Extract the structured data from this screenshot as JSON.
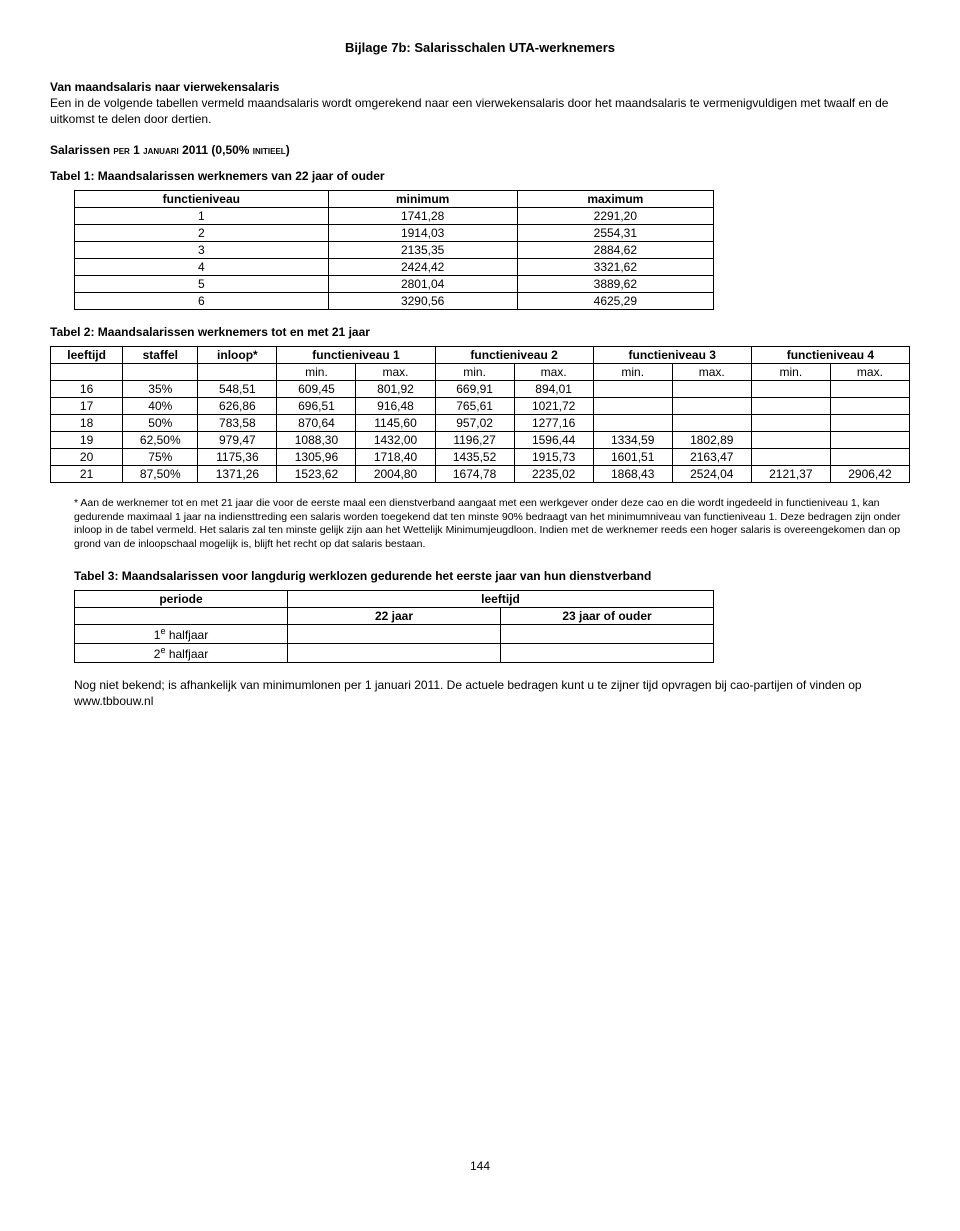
{
  "title": "Bijlage 7b:  Salarisschalen UTA-werknemers",
  "intro": {
    "heading": "Van maandsalaris naar vierwekensalaris",
    "body": "Een in de volgende tabellen vermeld maandsalaris wordt omgerekend naar een vierwekensalaris door het maandsalaris te vermenigvuldigen met twaalf en de uitkomst te delen door dertien."
  },
  "salarissen_line_pre": "Salarissen ",
  "salarissen_line_sc1": "per 1 januari",
  "salarissen_line_mid": " 2011 (0,50% ",
  "salarissen_line_sc2": "initieel",
  "salarissen_line_post": ")",
  "table1": {
    "caption": "Tabel 1: Maandsalarissen werknemers van 22 jaar of ouder",
    "headers": [
      "functieniveau",
      "minimum",
      "maximum"
    ],
    "rows": [
      [
        "1",
        "1741,28",
        "2291,20"
      ],
      [
        "2",
        "1914,03",
        "2554,31"
      ],
      [
        "3",
        "2135,35",
        "2884,62"
      ],
      [
        "4",
        "2424,42",
        "3321,62"
      ],
      [
        "5",
        "2801,04",
        "3889,62"
      ],
      [
        "6",
        "3290,56",
        "4625,29"
      ]
    ]
  },
  "table2": {
    "caption": "Tabel 2: Maandsalarissen werknemers tot en met 21 jaar",
    "head_row1": [
      "leeftijd",
      "staffel",
      "inloop*",
      "functieniveau 1",
      "functieniveau 2",
      "functieniveau 3",
      "functieniveau 4"
    ],
    "head_row2": [
      "",
      "",
      "",
      "min.",
      "max.",
      "min.",
      "max.",
      "min.",
      "max.",
      "min.",
      "max."
    ],
    "rows": [
      [
        "16",
        "35%",
        "548,51",
        "609,45",
        "801,92",
        "669,91",
        "894,01",
        "",
        "",
        "",
        ""
      ],
      [
        "17",
        "40%",
        "626,86",
        "696,51",
        "916,48",
        "765,61",
        "1021,72",
        "",
        "",
        "",
        ""
      ],
      [
        "18",
        "50%",
        "783,58",
        "870,64",
        "1145,60",
        "957,02",
        "1277,16",
        "",
        "",
        "",
        ""
      ],
      [
        "19",
        "62,50%",
        "979,47",
        "1088,30",
        "1432,00",
        "1196,27",
        "1596,44",
        "1334,59",
        "1802,89",
        "",
        ""
      ],
      [
        "20",
        "75%",
        "1175,36",
        "1305,96",
        "1718,40",
        "1435,52",
        "1915,73",
        "1601,51",
        "2163,47",
        "",
        ""
      ],
      [
        "21",
        "87,50%",
        "1371,26",
        "1523,62",
        "2004,80",
        "1674,78",
        "2235,02",
        "1868,43",
        "2524,04",
        "2121,37",
        "2906,42"
      ]
    ],
    "footnote": "* Aan de werknemer tot en met 21 jaar die voor de eerste maal een dienstverband aangaat met een werkgever onder deze cao en die wordt ingedeeld in functieniveau 1, kan gedurende maximaal 1 jaar na indiensttreding een salaris worden toegekend dat ten minste 90% bedraagt van het minimumniveau van functieniveau 1. Deze bedragen zijn onder inloop in de tabel vermeld. Het salaris zal ten minste gelijk zijn aan het Wettelijk Minimumjeugdloon. Indien met de werknemer reeds een hoger salaris is overeengekomen dan op grond van de inloopschaal mogelijk is, blijft het recht op dat salaris bestaan."
  },
  "table3": {
    "caption": "Tabel 3: Maandsalarissen voor langdurig werklozen gedurende het eerste jaar van hun dienstverband",
    "head_periode": "periode",
    "head_leeftijd": "leeftijd",
    "sub1": "22 jaar",
    "sub2": "23 jaar of ouder",
    "row1_label": "1e halfjaar",
    "row2_label": "2e halfjaar",
    "note": "Nog niet bekend; is afhankelijk van minimumlonen per 1 januari 2011. De actuele bedragen kunt u te zijner tijd opvragen bij cao-partijen of vinden op www.tbbouw.nl"
  },
  "page_number": "144"
}
